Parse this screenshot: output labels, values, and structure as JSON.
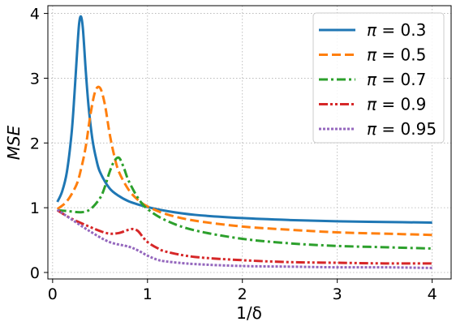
{
  "chart_data": {
    "type": "line",
    "xlabel": "1/δ",
    "ylabel": "MSE",
    "xlim": [
      -0.05,
      4.2
    ],
    "ylim": [
      -0.1,
      4.12
    ],
    "xticks": [
      0,
      1,
      2,
      3,
      4
    ],
    "yticks": [
      0,
      1,
      2,
      3,
      4
    ],
    "grid": true,
    "legend_position": "upper-right",
    "series": [
      {
        "name": "π = 0.3",
        "legend_prefix": "π",
        "legend_value": "0.3",
        "color": "#1f77b4",
        "style": "solid",
        "x": [
          0.05,
          0.1,
          0.15,
          0.2,
          0.23,
          0.26,
          0.28,
          0.3,
          0.32,
          0.35,
          0.38,
          0.42,
          0.46,
          0.5,
          0.6,
          0.7,
          0.8,
          0.9,
          1.0,
          1.2,
          1.5,
          2.0,
          2.5,
          3.0,
          3.5,
          4.0
        ],
        "y": [
          1.09,
          1.25,
          1.55,
          2.15,
          2.75,
          3.45,
          3.85,
          3.95,
          3.75,
          3.1,
          2.55,
          2.05,
          1.75,
          1.55,
          1.3,
          1.18,
          1.1,
          1.05,
          1.01,
          0.95,
          0.89,
          0.84,
          0.81,
          0.79,
          0.78,
          0.77
        ]
      },
      {
        "name": "π = 0.5",
        "legend_prefix": "π",
        "legend_value": "0.5",
        "color": "#ff7f0e",
        "style": "dashed",
        "x": [
          0.05,
          0.15,
          0.25,
          0.3,
          0.35,
          0.4,
          0.45,
          0.5,
          0.55,
          0.6,
          0.65,
          0.7,
          0.8,
          0.9,
          1.0,
          1.2,
          1.5,
          2.0,
          2.5,
          3.0,
          3.5,
          4.0
        ],
        "y": [
          0.98,
          1.1,
          1.35,
          1.6,
          1.95,
          2.45,
          2.8,
          2.85,
          2.6,
          2.15,
          1.8,
          1.55,
          1.28,
          1.12,
          1.02,
          0.9,
          0.8,
          0.71,
          0.66,
          0.62,
          0.6,
          0.58
        ]
      },
      {
        "name": "π = 0.7",
        "legend_prefix": "π",
        "legend_value": "0.7",
        "color": "#2ca02c",
        "style": "dashdot",
        "x": [
          0.05,
          0.15,
          0.3,
          0.4,
          0.5,
          0.55,
          0.6,
          0.65,
          0.7,
          0.75,
          0.8,
          0.9,
          1.0,
          1.2,
          1.5,
          2.0,
          2.5,
          3.0,
          3.5,
          4.0
        ],
        "y": [
          0.96,
          0.95,
          0.93,
          0.98,
          1.15,
          1.32,
          1.55,
          1.72,
          1.77,
          1.62,
          1.42,
          1.15,
          0.98,
          0.8,
          0.65,
          0.52,
          0.45,
          0.41,
          0.39,
          0.37
        ]
      },
      {
        "name": "π = 0.9",
        "legend_prefix": "π",
        "legend_value": "0.9",
        "color": "#d62728",
        "style": "dashdotdot",
        "x": [
          0.05,
          0.2,
          0.4,
          0.5,
          0.6,
          0.7,
          0.8,
          0.85,
          0.9,
          0.95,
          1.0,
          1.1,
          1.2,
          1.5,
          2.0,
          2.5,
          3.0,
          3.5,
          4.0
        ],
        "y": [
          0.96,
          0.83,
          0.7,
          0.64,
          0.6,
          0.61,
          0.66,
          0.67,
          0.64,
          0.55,
          0.47,
          0.38,
          0.32,
          0.24,
          0.19,
          0.16,
          0.15,
          0.14,
          0.14
        ]
      },
      {
        "name": "π = 0.95",
        "legend_prefix": "π",
        "legend_value": "0.95",
        "color": "#9467bd",
        "style": "dotted",
        "x": [
          0.05,
          0.2,
          0.4,
          0.6,
          0.8,
          0.9,
          1.0,
          1.1,
          1.2,
          1.5,
          2.0,
          2.5,
          3.0,
          3.5,
          4.0
        ],
        "y": [
          0.97,
          0.82,
          0.63,
          0.47,
          0.4,
          0.34,
          0.26,
          0.2,
          0.17,
          0.13,
          0.1,
          0.09,
          0.08,
          0.08,
          0.07
        ]
      }
    ]
  }
}
